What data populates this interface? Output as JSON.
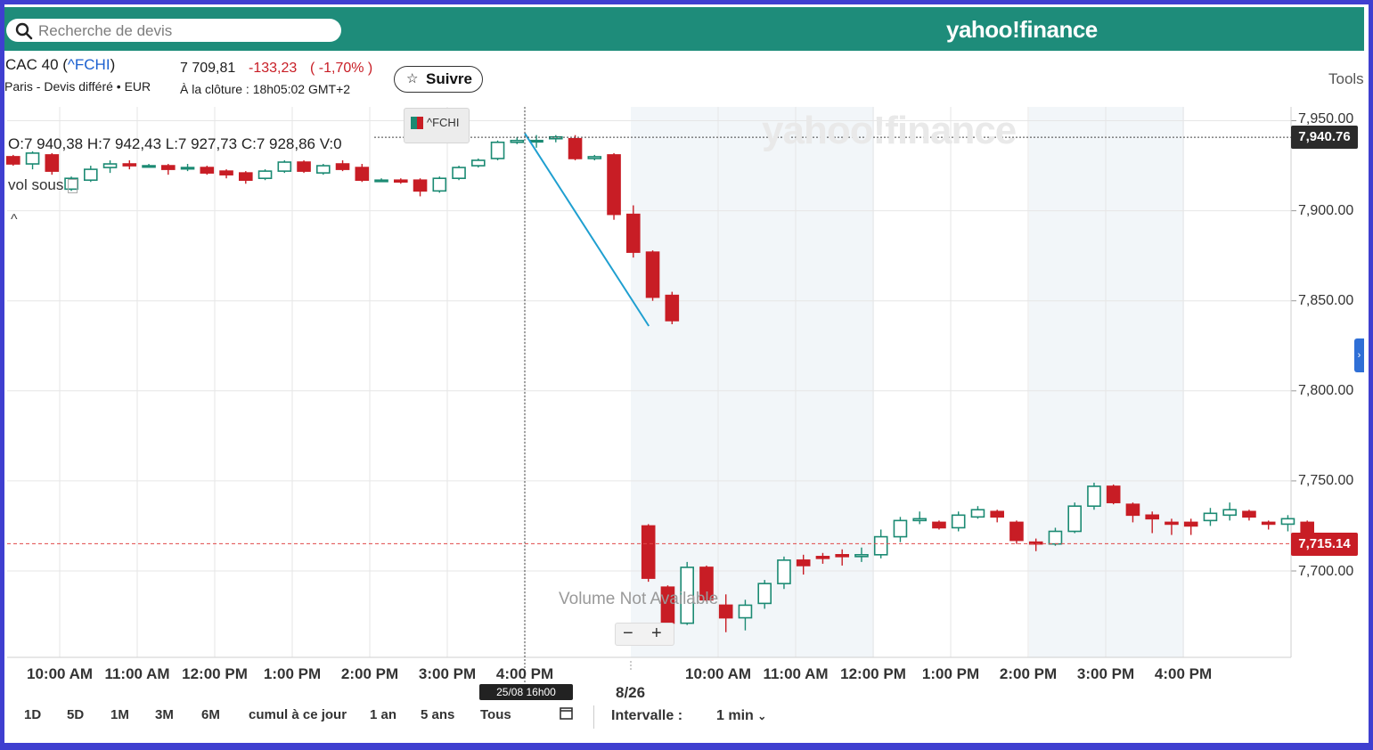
{
  "search": {
    "placeholder": "Recherche de devis"
  },
  "brand": {
    "logo_text": "yahoo!finance"
  },
  "quote": {
    "name_prefix": "CAC 40 (",
    "symbol": "^FCHI",
    "name_suffix": ")",
    "exchange_line": "Paris - Devis différé • EUR",
    "price": "7 709,81",
    "change": "-133,23",
    "change_pct": "( -1,70% )",
    "close_time": "À la clôture : 18h05:02 GMT+2"
  },
  "follow_button": {
    "label": "Suivre",
    "icon": "star-icon"
  },
  "tools_label": "Tools",
  "chart_header": {
    "symbol_tag": "^FCHI",
    "ohlc": "O:7 940,38  H:7 942,43  L:7 927,73  C:7 928,86  V:0",
    "vol_label": "vol sous",
    "watermark": "yahoo!finance",
    "volume_na": "Volume Not Available"
  },
  "zoom": {
    "minus": "−",
    "plus": "+"
  },
  "crosshair": {
    "date_badge": "25/08 16h00",
    "price_badge": "7,940.76"
  },
  "last_price_badge": "7,715.14",
  "date_separator_label": "8/26",
  "colors": {
    "up": "#1b8a73",
    "down": "#c81d25",
    "header": "#1e8c7a",
    "frame": "#3f3fd0",
    "trendline": "#1f9fd0",
    "after_hours_shade": "#f2f6f9"
  },
  "range_buttons": [
    "1D",
    "5D",
    "1M",
    "3M",
    "6M",
    "cumul à ce jour",
    "1 an",
    "5 ans",
    "Tous"
  ],
  "calendar_icon": "calendar-icon",
  "interval": {
    "label": "Intervalle :",
    "value": "1 min"
  },
  "chart_data": {
    "type": "candlestick",
    "title": "CAC 40 (^FCHI)",
    "xlabel": "",
    "ylabel": "",
    "ylim": [
      7650,
      7955
    ],
    "grid": true,
    "y_ticks": [
      "7,700.00",
      "7,750.00",
      "7,800.00",
      "7,850.00",
      "7,900.00",
      "7,950.00"
    ],
    "y_tick_values": [
      7700,
      7750,
      7800,
      7850,
      7900,
      7950
    ],
    "x_ticks": [
      {
        "label": "10:00 AM",
        "day": 1,
        "hour": 10
      },
      {
        "label": "11:00 AM",
        "day": 1,
        "hour": 11
      },
      {
        "label": "12:00 PM",
        "day": 1,
        "hour": 12
      },
      {
        "label": "1:00 PM",
        "day": 1,
        "hour": 13
      },
      {
        "label": "2:00 PM",
        "day": 1,
        "hour": 14
      },
      {
        "label": "3:00 PM",
        "day": 1,
        "hour": 15
      },
      {
        "label": "4:00 PM",
        "day": 1,
        "hour": 16
      },
      {
        "label": "10:00 AM",
        "day": 2,
        "hour": 10
      },
      {
        "label": "11:00 AM",
        "day": 2,
        "hour": 11
      },
      {
        "label": "12:00 PM",
        "day": 2,
        "hour": 12
      },
      {
        "label": "1:00 PM",
        "day": 2,
        "hour": 13
      },
      {
        "label": "2:00 PM",
        "day": 2,
        "hour": 14
      },
      {
        "label": "3:00 PM",
        "day": 2,
        "hour": 15
      },
      {
        "label": "4:00 PM",
        "day": 2,
        "hour": 16
      }
    ],
    "day1_candles": [
      [
        9.4,
        7930,
        7931,
        7925,
        7926
      ],
      [
        9.65,
        7926,
        7933,
        7923,
        7932
      ],
      [
        9.9,
        7931,
        7932,
        7920,
        7922
      ],
      [
        10.15,
        7912,
        7919,
        7911,
        7918
      ],
      [
        10.4,
        7917,
        7925,
        7916,
        7923
      ],
      [
        10.65,
        7924,
        7928,
        7921,
        7926
      ],
      [
        10.9,
        7926,
        7928,
        7923,
        7925
      ],
      [
        11.15,
        7925,
        7926,
        7924,
        7925
      ],
      [
        11.4,
        7925,
        7926,
        7920,
        7923
      ],
      [
        11.65,
        7924,
        7926,
        7922,
        7924
      ],
      [
        11.9,
        7924,
        7925,
        7920,
        7921
      ],
      [
        12.15,
        7922,
        7923,
        7918,
        7920
      ],
      [
        12.4,
        7921,
        7922,
        7915,
        7917
      ],
      [
        12.65,
        7918,
        7923,
        7917,
        7922
      ],
      [
        12.9,
        7922,
        7928,
        7921,
        7927
      ],
      [
        13.15,
        7927,
        7928,
        7921,
        7922
      ],
      [
        13.4,
        7921,
        7926,
        7920,
        7925
      ],
      [
        13.65,
        7926,
        7928,
        7922,
        7923
      ],
      [
        13.9,
        7924,
        7926,
        7916,
        7917
      ],
      [
        14.15,
        7917,
        7918,
        7916,
        7917
      ],
      [
        14.4,
        7917,
        7918,
        7915,
        7916
      ],
      [
        14.65,
        7917,
        7918,
        7908,
        7911
      ],
      [
        14.9,
        7911,
        7919,
        7910,
        7918
      ],
      [
        15.15,
        7918,
        7925,
        7917,
        7924
      ],
      [
        15.4,
        7925,
        7929,
        7924,
        7928
      ],
      [
        15.65,
        7929,
        7939,
        7928,
        7938
      ],
      [
        15.9,
        7938,
        7941,
        7937,
        7939
      ],
      [
        16.15,
        7939,
        7942,
        7935,
        7939
      ],
      [
        16.4,
        7940,
        7942,
        7938,
        7941
      ],
      [
        16.65,
        7940,
        7942,
        7928,
        7929
      ],
      [
        16.9,
        7929,
        7931,
        7928,
        7930
      ],
      [
        17.15,
        7931,
        7932,
        7895,
        7898
      ],
      [
        17.4,
        7898,
        7903,
        7874,
        7877
      ],
      [
        17.65,
        7877,
        7878,
        7850,
        7852
      ],
      [
        17.9,
        7853,
        7855,
        7837,
        7839
      ]
    ],
    "day2_candles": [
      [
        9.1,
        7725,
        7726,
        7694,
        7696
      ],
      [
        9.35,
        7691,
        7692,
        7670,
        7671
      ],
      [
        9.6,
        7671,
        7705,
        7670,
        7702
      ],
      [
        9.85,
        7702,
        7703,
        7683,
        7684
      ],
      [
        10.1,
        7681,
        7687,
        7666,
        7674
      ],
      [
        10.35,
        7674,
        7684,
        7667,
        7681
      ],
      [
        10.6,
        7682,
        7695,
        7679,
        7693
      ],
      [
        10.85,
        7693,
        7708,
        7690,
        7706
      ],
      [
        11.1,
        7706,
        7709,
        7698,
        7703
      ],
      [
        11.35,
        7708,
        7710,
        7704,
        7707
      ],
      [
        11.6,
        7709,
        7712,
        7703,
        7708
      ],
      [
        11.85,
        7708,
        7713,
        7705,
        7709
      ],
      [
        12.1,
        7709,
        7723,
        7707,
        7719
      ],
      [
        12.35,
        7719,
        7730,
        7716,
        7728
      ],
      [
        12.6,
        7728,
        7733,
        7726,
        7729
      ],
      [
        12.85,
        7727,
        7728,
        7723,
        7724
      ],
      [
        13.1,
        7724,
        7733,
        7722,
        7731
      ],
      [
        13.35,
        7730,
        7736,
        7729,
        7734
      ],
      [
        13.6,
        7733,
        7734,
        7727,
        7730
      ],
      [
        13.85,
        7727,
        7728,
        7715,
        7717
      ],
      [
        14.1,
        7716,
        7718,
        7711,
        7715
      ],
      [
        14.35,
        7715,
        7724,
        7714,
        7722
      ],
      [
        14.6,
        7722,
        7738,
        7721,
        7736
      ],
      [
        14.85,
        7736,
        7749,
        7734,
        7747
      ],
      [
        15.1,
        7747,
        7748,
        7737,
        7738
      ],
      [
        15.35,
        7737,
        7738,
        7727,
        7731
      ],
      [
        15.6,
        7731,
        7733,
        7721,
        7729
      ],
      [
        15.85,
        7727,
        7729,
        7720,
        7726
      ],
      [
        16.1,
        7727,
        7729,
        7720,
        7725
      ],
      [
        16.35,
        7728,
        7735,
        7725,
        7732
      ],
      [
        16.6,
        7731,
        7738,
        7728,
        7734
      ],
      [
        16.85,
        7733,
        7734,
        7728,
        7730
      ],
      [
        17.1,
        7727,
        7728,
        7723,
        7726
      ],
      [
        17.35,
        7726,
        7731,
        7722,
        7729
      ],
      [
        17.6,
        7727,
        7728,
        7713,
        7716
      ]
    ],
    "crosshair": {
      "day": 1,
      "hour": 16.0,
      "price": 7940.76
    },
    "last_price": 7715.14,
    "trendline": [
      [
        1,
        16.0,
        7943
      ],
      [
        1,
        17.6,
        7836
      ]
    ]
  }
}
